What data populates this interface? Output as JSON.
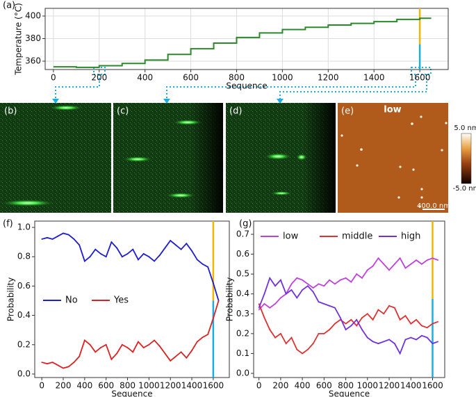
{
  "panel_labels": [
    "(a)",
    "(b)",
    "(c)",
    "(d)",
    "(e)",
    "(f)",
    "(g)"
  ],
  "image_labels": {
    "condition": "low",
    "scale_bar": "400.0 nm",
    "colorbar_max": "5.0 nm",
    "colorbar_min": "-5.0 nm"
  },
  "chart_data": [
    {
      "type": "line",
      "xlabel": "Sequence",
      "ylabel": "Temperature (°C)",
      "drawstyle": "steps-post",
      "grid": true,
      "x": [
        0,
        100,
        200,
        300,
        400,
        500,
        600,
        700,
        800,
        900,
        1000,
        1100,
        1200,
        1300,
        1400,
        1500,
        1600,
        1650
      ],
      "series": [
        {
          "name": "Temperature",
          "color": "#2a8a2a",
          "values": [
            355,
            354.5,
            356,
            358,
            361,
            366,
            371,
            376,
            381,
            385,
            388,
            390,
            392,
            393.5,
            395,
            397,
            398,
            398
          ]
        }
      ],
      "xlim": [
        -36,
        1724
      ],
      "ylim": [
        352.6,
        406.8
      ],
      "xticks": [
        0,
        200,
        400,
        600,
        800,
        1000,
        1200,
        1400,
        1600
      ],
      "yticks": [
        360,
        380,
        400
      ],
      "vline": 1600,
      "vline_split": 375,
      "vline_colors": [
        "#f5b400",
        "#1aaee6"
      ]
    },
    {
      "type": "line",
      "xlabel": "Sequence",
      "ylabel": "Probability",
      "grid": false,
      "legend": "center left",
      "x": [
        0,
        50,
        100,
        150,
        200,
        250,
        300,
        350,
        400,
        450,
        500,
        550,
        600,
        650,
        700,
        750,
        800,
        850,
        900,
        950,
        1000,
        1050,
        1100,
        1150,
        1200,
        1250,
        1300,
        1350,
        1400,
        1450,
        1500,
        1550,
        1600,
        1650
      ],
      "series": [
        {
          "name": "No",
          "color": "#1c1cd6",
          "values": [
            0.92,
            0.93,
            0.92,
            0.94,
            0.96,
            0.95,
            0.92,
            0.88,
            0.77,
            0.8,
            0.85,
            0.82,
            0.8,
            0.9,
            0.86,
            0.8,
            0.82,
            0.85,
            0.78,
            0.82,
            0.8,
            0.77,
            0.81,
            0.86,
            0.91,
            0.88,
            0.85,
            0.89,
            0.84,
            0.78,
            0.75,
            0.73,
            0.62,
            0.5
          ]
        },
        {
          "name": "Yes",
          "color": "#e02020",
          "values": [
            0.08,
            0.07,
            0.08,
            0.06,
            0.04,
            0.05,
            0.08,
            0.12,
            0.23,
            0.2,
            0.15,
            0.18,
            0.2,
            0.1,
            0.14,
            0.2,
            0.18,
            0.15,
            0.22,
            0.18,
            0.2,
            0.23,
            0.19,
            0.14,
            0.09,
            0.12,
            0.15,
            0.11,
            0.16,
            0.22,
            0.25,
            0.27,
            0.38,
            0.5
          ]
        }
      ],
      "xlim": [
        -66,
        1750
      ],
      "ylim": [
        -0.024,
        1.043
      ],
      "xticks": [
        0,
        200,
        400,
        600,
        800,
        1000,
        1200,
        1400,
        1600
      ],
      "yticks": [
        {
          "value": 0,
          "label": "0.0"
        },
        0.2,
        0.4,
        0.6,
        0.8,
        {
          "value": 1,
          "label": "1.0"
        }
      ],
      "vline": 1600,
      "vline_split": 0.5,
      "vline_colors": [
        "#f5b400",
        "#1aaee6"
      ]
    },
    {
      "type": "line",
      "xlabel": "Sequence",
      "ylabel": "Probability",
      "grid": false,
      "legend": "upper center",
      "x": [
        0,
        50,
        100,
        150,
        200,
        250,
        300,
        350,
        400,
        450,
        500,
        550,
        600,
        650,
        700,
        750,
        800,
        850,
        900,
        950,
        1000,
        1050,
        1100,
        1150,
        1200,
        1250,
        1300,
        1350,
        1400,
        1450,
        1500,
        1550,
        1600,
        1650
      ],
      "series": [
        {
          "name": "low",
          "color": "#c040e0",
          "values": [
            0.32,
            0.35,
            0.33,
            0.35,
            0.38,
            0.4,
            0.45,
            0.48,
            0.47,
            0.45,
            0.43,
            0.45,
            0.44,
            0.47,
            0.45,
            0.47,
            0.48,
            0.46,
            0.5,
            0.48,
            0.52,
            0.54,
            0.58,
            0.55,
            0.52,
            0.55,
            0.58,
            0.53,
            0.55,
            0.57,
            0.55,
            0.57,
            0.58,
            0.57
          ]
        },
        {
          "name": "middle",
          "color": "#e03030",
          "values": [
            0.35,
            0.28,
            0.22,
            0.18,
            0.2,
            0.15,
            0.18,
            0.12,
            0.1,
            0.12,
            0.15,
            0.2,
            0.2,
            0.22,
            0.25,
            0.27,
            0.25,
            0.27,
            0.24,
            0.28,
            0.3,
            0.27,
            0.32,
            0.3,
            0.34,
            0.33,
            0.27,
            0.29,
            0.25,
            0.27,
            0.24,
            0.23,
            0.25,
            0.26
          ]
        },
        {
          "name": "high",
          "color": "#7030e0",
          "values": [
            0.33,
            0.4,
            0.48,
            0.44,
            0.47,
            0.4,
            0.42,
            0.38,
            0.42,
            0.44,
            0.41,
            0.36,
            0.35,
            0.34,
            0.33,
            0.28,
            0.22,
            0.24,
            0.27,
            0.22,
            0.18,
            0.16,
            0.15,
            0.16,
            0.17,
            0.15,
            0.1,
            0.17,
            0.18,
            0.17,
            0.19,
            0.18,
            0.15,
            0.16
          ]
        }
      ],
      "xlim": [
        -49,
        1712
      ],
      "ylim": [
        -0.021,
        0.7665
      ],
      "xticks": [
        0,
        200,
        400,
        600,
        800,
        1000,
        1200,
        1400,
        1600
      ],
      "yticks": [
        {
          "value": 0,
          "label": "0.0"
        },
        0.1,
        0.2,
        0.3,
        0.4,
        0.5,
        0.6,
        0.7
      ],
      "vline": 1600,
      "vline_split": 0.375,
      "vline_colors": [
        "#f5b400",
        "#1aaee6"
      ]
    }
  ]
}
